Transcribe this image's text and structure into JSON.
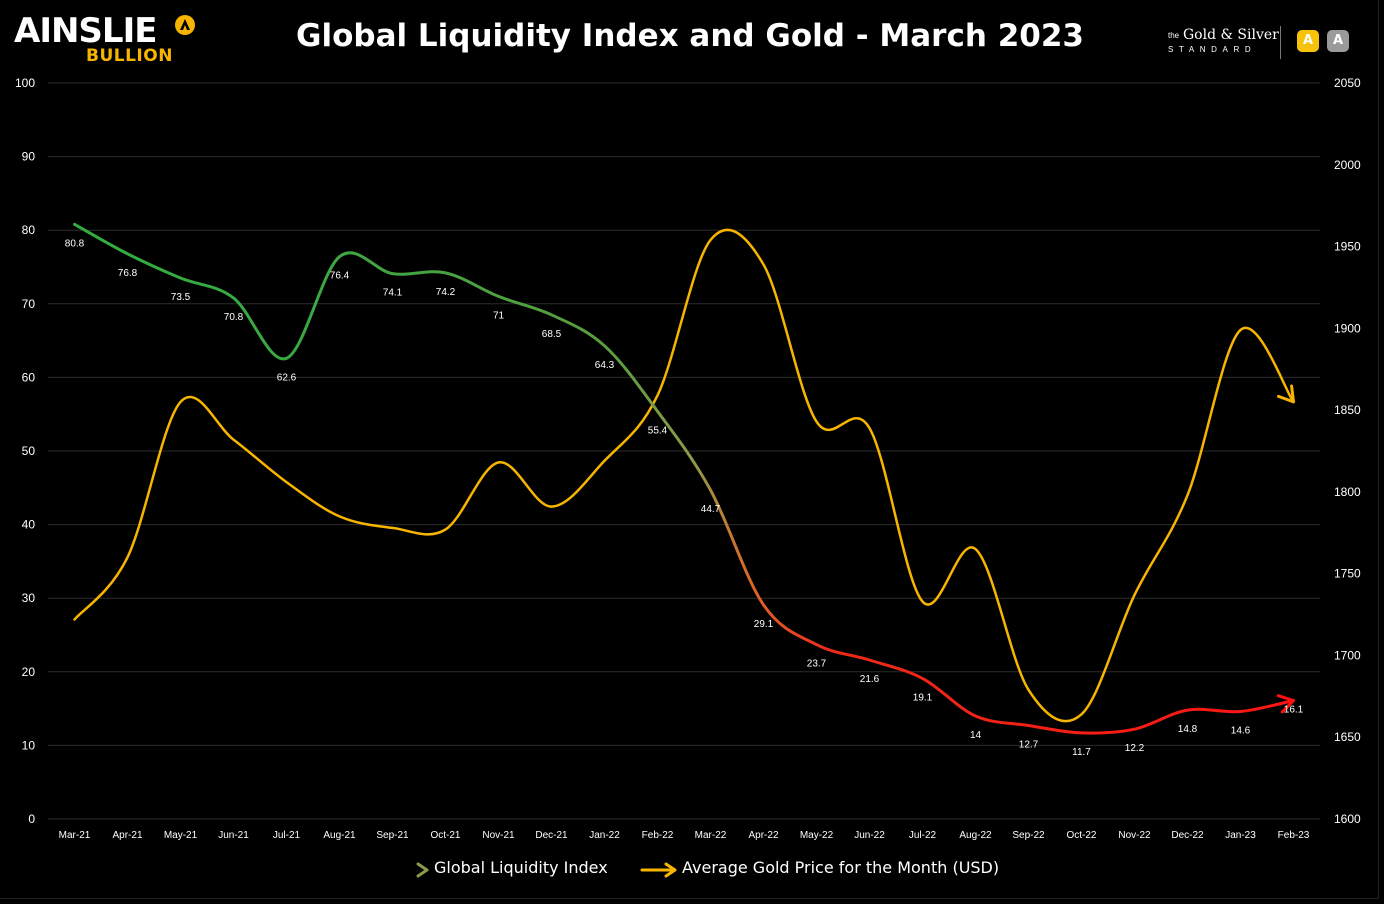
{
  "header": {
    "brand": "AINSLIE",
    "brand_sub": "BULLION",
    "title": "Global Liquidity Index and Gold - March 2023",
    "partner_small": "the",
    "partner_name": "Gold & Silver",
    "partner_std": "STANDARD",
    "icon_a1": "A",
    "icon_a2": "A"
  },
  "colors": {
    "gold": "#f7b500",
    "liquidity_green": "#2fae3f",
    "liquidity_olive": "#8c9a4a",
    "liquidity_orange": "#d96a28",
    "liquidity_red": "#ff1010",
    "grid": "#2c2c2c",
    "brand_yellow": "#f7b500"
  },
  "chart_data": {
    "type": "line",
    "title": "Global Liquidity Index and Gold - March 2023",
    "categories": [
      "Mar-21",
      "Apr-21",
      "May-21",
      "Jun-21",
      "Jul-21",
      "Aug-21",
      "Sep-21",
      "Oct-21",
      "Nov-21",
      "Dec-21",
      "Jan-22",
      "Feb-22",
      "Mar-22",
      "Apr-22",
      "May-22",
      "Jun-22",
      "Jul-22",
      "Aug-22",
      "Sep-22",
      "Oct-22",
      "Nov-22",
      "Dec-22",
      "Jan-23",
      "Feb-23"
    ],
    "left_axis": {
      "ylim": [
        0,
        100
      ],
      "ticks": [
        "0",
        "10",
        "20",
        "30",
        "40",
        "50",
        "60",
        "70",
        "80",
        "90",
        "100"
      ]
    },
    "right_axis": {
      "ylim": [
        1600,
        2050
      ],
      "ticks": [
        "1600",
        "1650",
        "1700",
        "1750",
        "1800",
        "1850",
        "1900",
        "1950",
        "2000",
        "2050"
      ]
    },
    "grid": true,
    "legend_position": "bottom",
    "series": [
      {
        "name": "Global Liquidity Index",
        "axis": "left",
        "values": [
          80.8,
          76.8,
          73.5,
          70.8,
          62.6,
          76.4,
          74.1,
          74.2,
          71,
          68.5,
          64.3,
          55.4,
          44.7,
          29.1,
          23.7,
          21.6,
          19.1,
          14,
          12.7,
          11.7,
          12.2,
          14.8,
          14.6,
          16.1
        ],
        "labels": [
          "80.8",
          "76.8",
          "73.5",
          "70.8",
          "62.6",
          "76.4",
          "74.1",
          "74.2",
          "71",
          "68.5",
          "64.3",
          "55.4",
          "44.7",
          "29.1",
          "23.7",
          "21.6",
          "19.1",
          "14",
          "12.7",
          "11.7",
          "12.2",
          "14.8",
          "14.6",
          "16.1"
        ]
      },
      {
        "name": "Average Gold Price for the Month (USD)",
        "axis": "right",
        "values": [
          1722,
          1760,
          1855,
          1832,
          1806,
          1785,
          1778,
          1777,
          1818,
          1791,
          1819,
          1859,
          1954,
          1939,
          1843,
          1839,
          1733,
          1765,
          1679,
          1664,
          1737,
          1798,
          1899,
          1855
        ]
      }
    ]
  }
}
